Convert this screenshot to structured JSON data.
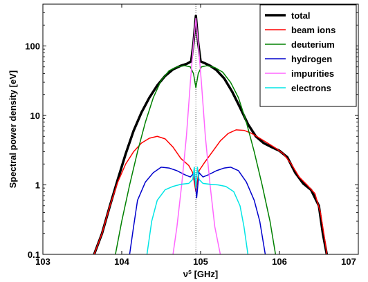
{
  "chart_data": {
    "type": "line",
    "xlabel": "ν^s [GHz]",
    "xlabel_base": "ν",
    "xlabel_sup": "s",
    "xlabel_rest": " [GHz]",
    "ylabel": "Spectral power density [eV]",
    "xlim": [
      103,
      107
    ],
    "ylim": [
      0.1,
      400
    ],
    "yscale": "log",
    "xticks": [
      103,
      104,
      105,
      106,
      107
    ],
    "xtick_labels": [
      "103",
      "104",
      "105",
      "106",
      "107"
    ],
    "yticks": [
      0.1,
      1,
      10,
      100
    ],
    "ytick_labels": [
      "0.1",
      "1",
      "10",
      "100"
    ],
    "grid": false,
    "legend_position": "top-right",
    "reference_line": {
      "x": 104.94,
      "style": "dotted"
    },
    "series": [
      {
        "name": "total",
        "color": "#000000",
        "width": 3.5,
        "points": [
          [
            103.65,
            0.1
          ],
          [
            103.75,
            0.2
          ],
          [
            103.85,
            0.5
          ],
          [
            103.95,
            1.2
          ],
          [
            104.05,
            2.8
          ],
          [
            104.15,
            6
          ],
          [
            104.25,
            11
          ],
          [
            104.35,
            18
          ],
          [
            104.45,
            27
          ],
          [
            104.55,
            37
          ],
          [
            104.65,
            46
          ],
          [
            104.75,
            52
          ],
          [
            104.82,
            55
          ],
          [
            104.88,
            60
          ],
          [
            104.91,
            110
          ],
          [
            104.94,
            270
          ],
          [
            104.97,
            110
          ],
          [
            105.0,
            60
          ],
          [
            105.06,
            56
          ],
          [
            105.12,
            52
          ],
          [
            105.2,
            45
          ],
          [
            105.3,
            34
          ],
          [
            105.4,
            22
          ],
          [
            105.5,
            13
          ],
          [
            105.6,
            7.5
          ],
          [
            105.7,
            5
          ],
          [
            105.8,
            4
          ],
          [
            105.9,
            3.5
          ],
          [
            106.0,
            3.1
          ],
          [
            106.1,
            2.5
          ],
          [
            106.2,
            1.5
          ],
          [
            106.3,
            1.05
          ],
          [
            106.4,
            0.85
          ],
          [
            106.5,
            0.5
          ],
          [
            106.55,
            0.2
          ],
          [
            106.6,
            0.1
          ]
        ]
      },
      {
        "name": "beam ions",
        "color": "#ff0000",
        "width": 1.5,
        "points": [
          [
            103.65,
            0.1
          ],
          [
            103.75,
            0.2
          ],
          [
            103.85,
            0.5
          ],
          [
            103.95,
            1.1
          ],
          [
            104.05,
            2
          ],
          [
            104.15,
            3
          ],
          [
            104.25,
            4
          ],
          [
            104.35,
            4.7
          ],
          [
            104.45,
            5
          ],
          [
            104.55,
            4.6
          ],
          [
            104.65,
            3.5
          ],
          [
            104.75,
            2.4
          ],
          [
            104.85,
            1.9
          ],
          [
            104.9,
            1.5
          ],
          [
            104.94,
            0.8
          ],
          [
            104.98,
            1.6
          ],
          [
            105.05,
            2.1
          ],
          [
            105.15,
            3
          ],
          [
            105.25,
            4.3
          ],
          [
            105.35,
            5.5
          ],
          [
            105.45,
            6.2
          ],
          [
            105.55,
            6.1
          ],
          [
            105.65,
            5.5
          ],
          [
            105.75,
            4.7
          ],
          [
            105.85,
            4
          ],
          [
            105.95,
            3.4
          ],
          [
            106.05,
            2.8
          ],
          [
            106.15,
            2
          ],
          [
            106.25,
            1.3
          ],
          [
            106.35,
            1
          ],
          [
            106.45,
            0.75
          ],
          [
            106.52,
            0.4
          ],
          [
            106.58,
            0.15
          ],
          [
            106.6,
            0.1
          ]
        ]
      },
      {
        "name": "deuterium",
        "color": "#008000",
        "width": 1.5,
        "points": [
          [
            103.92,
            0.1
          ],
          [
            104.0,
            0.3
          ],
          [
            104.1,
            1
          ],
          [
            104.2,
            3
          ],
          [
            104.3,
            8
          ],
          [
            104.4,
            18
          ],
          [
            104.5,
            32
          ],
          [
            104.6,
            44
          ],
          [
            104.7,
            50
          ],
          [
            104.8,
            52
          ],
          [
            104.87,
            50
          ],
          [
            104.91,
            40
          ],
          [
            104.94,
            25
          ],
          [
            104.97,
            40
          ],
          [
            105.01,
            50
          ],
          [
            105.08,
            52
          ],
          [
            105.18,
            49
          ],
          [
            105.28,
            42
          ],
          [
            105.38,
            30
          ],
          [
            105.48,
            18
          ],
          [
            105.58,
            8
          ],
          [
            105.68,
            3
          ],
          [
            105.78,
            1
          ],
          [
            105.88,
            0.3
          ],
          [
            105.95,
            0.1
          ]
        ]
      },
      {
        "name": "hydrogen",
        "color": "#0000cc",
        "width": 1.5,
        "points": [
          [
            104.1,
            0.1
          ],
          [
            104.15,
            0.25
          ],
          [
            104.2,
            0.6
          ],
          [
            104.3,
            1.1
          ],
          [
            104.4,
            1.5
          ],
          [
            104.5,
            1.8
          ],
          [
            104.6,
            1.75
          ],
          [
            104.7,
            1.6
          ],
          [
            104.8,
            1.4
          ],
          [
            104.87,
            1.3
          ],
          [
            104.92,
            1.5
          ],
          [
            104.95,
            0.65
          ],
          [
            104.98,
            1.5
          ],
          [
            105.03,
            1.3
          ],
          [
            105.1,
            1.4
          ],
          [
            105.2,
            1.6
          ],
          [
            105.3,
            1.75
          ],
          [
            105.38,
            1.8
          ],
          [
            105.48,
            1.6
          ],
          [
            105.58,
            1.1
          ],
          [
            105.68,
            0.6
          ],
          [
            105.75,
            0.3
          ],
          [
            105.82,
            0.1
          ]
        ]
      },
      {
        "name": "impurities",
        "color": "#ff66ff",
        "width": 1.5,
        "points": [
          [
            104.65,
            0.1
          ],
          [
            104.7,
            0.25
          ],
          [
            104.76,
            1
          ],
          [
            104.82,
            5
          ],
          [
            104.87,
            30
          ],
          [
            104.91,
            110
          ],
          [
            104.94,
            250
          ],
          [
            104.97,
            110
          ],
          [
            105.01,
            30
          ],
          [
            105.06,
            5
          ],
          [
            105.12,
            1
          ],
          [
            105.18,
            0.25
          ],
          [
            105.25,
            0.1
          ]
        ]
      },
      {
        "name": "electrons",
        "color": "#00e5e5",
        "width": 1.5,
        "points": [
          [
            104.32,
            0.1
          ],
          [
            104.38,
            0.3
          ],
          [
            104.45,
            0.6
          ],
          [
            104.55,
            0.85
          ],
          [
            104.65,
            0.95
          ],
          [
            104.75,
            1.02
          ],
          [
            104.85,
            1.05
          ],
          [
            104.9,
            1.2
          ],
          [
            104.92,
            1.8
          ],
          [
            104.94,
            0.9
          ],
          [
            104.96,
            1.8
          ],
          [
            104.98,
            1.2
          ],
          [
            105.03,
            1.05
          ],
          [
            105.12,
            1.02
          ],
          [
            105.22,
            1.0
          ],
          [
            105.32,
            0.95
          ],
          [
            105.42,
            0.8
          ],
          [
            105.5,
            0.5
          ],
          [
            105.55,
            0.25
          ],
          [
            105.6,
            0.1
          ]
        ]
      }
    ]
  }
}
